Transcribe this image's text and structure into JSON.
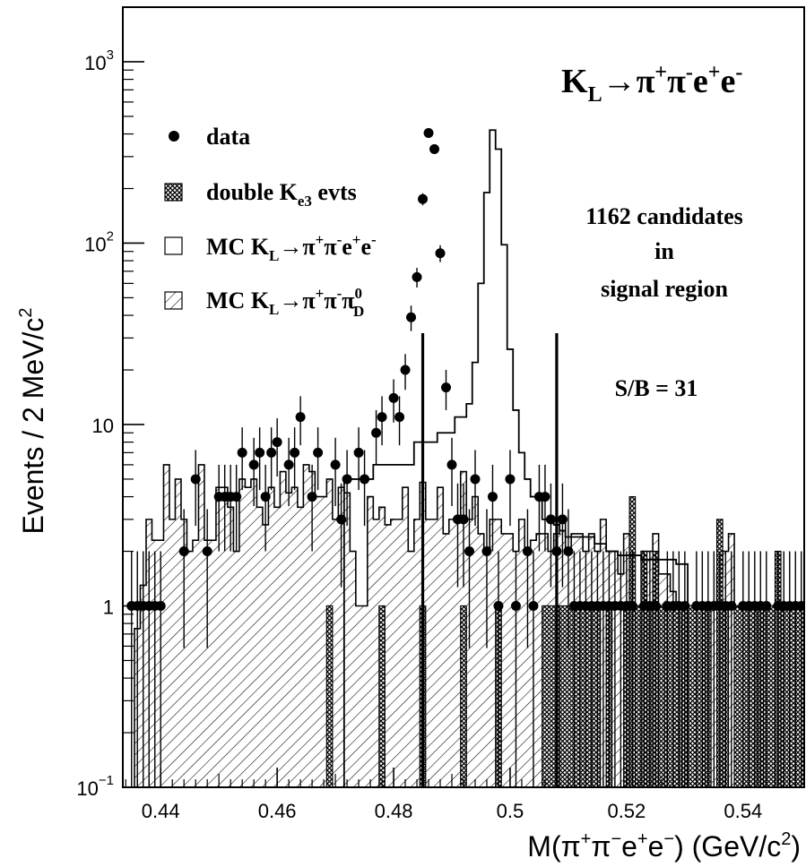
{
  "chart_data": {
    "type": "histogram",
    "title": "",
    "xlabel": "M(π+π−e+e−) (GeV/c2)",
    "ylabel": "Events / 2 MeV/c2",
    "ylog": true,
    "xlim": [
      0.4335,
      0.5505
    ],
    "ylim": [
      0.1,
      2000
    ],
    "x_ticks": [
      "0.44",
      "0.46",
      "0.48",
      "0.5",
      "0.52",
      "0.54"
    ],
    "y_ticks": [
      {
        "base": "10",
        "exp": "−1",
        "value": 0.1
      },
      {
        "base": "1",
        "exp": "",
        "value": 1
      },
      {
        "base": "10",
        "exp": "",
        "value": 10
      },
      {
        "base": "10",
        "exp": "2",
        "value": 100
      },
      {
        "base": "10",
        "exp": "3",
        "value": 1000
      }
    ],
    "bin_width": 0.001,
    "signal_window": [
      0.485,
      0.508
    ],
    "series": [
      {
        "name": "data",
        "style": "points-with-errors",
        "x": [
          0.435,
          0.436,
          0.437,
          0.438,
          0.439,
          0.44,
          0.444,
          0.446,
          0.448,
          0.45,
          0.451,
          0.452,
          0.453,
          0.454,
          0.456,
          0.457,
          0.458,
          0.459,
          0.46,
          0.462,
          0.463,
          0.464,
          0.466,
          0.467,
          0.47,
          0.471,
          0.472,
          0.474,
          0.475,
          0.477,
          0.478,
          0.48,
          0.481,
          0.482,
          0.483,
          0.484,
          0.485,
          0.486,
          0.487,
          0.488,
          0.489,
          0.49,
          0.491,
          0.492,
          0.493,
          0.494,
          0.496,
          0.497,
          0.498,
          0.5,
          0.501,
          0.503,
          0.504,
          0.505,
          0.506,
          0.507,
          0.508,
          0.509,
          0.51,
          0.511,
          0.512,
          0.513,
          0.514,
          0.515,
          0.516,
          0.517,
          0.518,
          0.519,
          0.52,
          0.521,
          0.523,
          0.524,
          0.525,
          0.527,
          0.528,
          0.529,
          0.53,
          0.532,
          0.533,
          0.534,
          0.535,
          0.536,
          0.537,
          0.538,
          0.54,
          0.541,
          0.542,
          0.543,
          0.544,
          0.546,
          0.547,
          0.548,
          0.549,
          0.55
        ],
        "values": [
          1,
          1,
          1,
          1,
          1,
          1,
          2,
          5,
          2,
          4,
          4,
          4,
          4,
          7,
          6,
          7,
          4,
          7,
          8,
          6,
          7,
          11,
          4,
          7,
          6,
          3,
          5,
          7,
          5,
          9,
          11,
          14,
          11,
          20,
          39,
          65,
          175,
          405,
          330,
          88,
          16,
          6,
          3,
          3,
          2,
          5,
          2,
          4,
          1,
          5,
          1,
          2,
          1,
          4,
          4,
          3,
          2,
          3,
          2,
          1,
          1,
          1,
          1,
          1,
          1,
          1,
          1,
          1,
          1,
          1,
          1,
          1,
          1,
          1,
          1,
          1,
          1,
          1,
          1,
          1,
          1,
          1,
          1,
          1,
          1,
          1,
          1,
          1,
          1,
          1,
          1,
          1,
          1,
          1
        ],
        "note": "Original shows filled circles with vertical error bars."
      },
      {
        "name": "double Ke3 evts",
        "style": "crosshatch-histogram",
        "edges": [
          0.4685,
          0.4695,
          0.4775,
          0.4785,
          0.4845,
          0.4855,
          0.4915,
          0.4925,
          0.4975,
          0.4985,
          0.5055,
          0.5085,
          0.5155,
          0.5165,
          0.5175,
          0.5195,
          0.5205,
          0.5215,
          0.5225,
          0.5235,
          0.5245,
          0.5255,
          0.5265,
          0.5295,
          0.5305,
          0.5335,
          0.5345,
          0.5355,
          0.5365,
          0.5375,
          0.5385,
          0.5425,
          0.5435,
          0.5455,
          0.5465,
          0.5505
        ],
        "values": [
          1,
          0,
          1,
          0,
          1,
          0,
          1,
          0,
          1,
          0,
          1,
          1,
          0,
          1,
          0,
          1,
          4,
          1,
          2,
          1,
          2,
          1,
          1,
          1,
          1,
          1,
          0,
          3,
          1,
          0,
          1,
          1,
          1,
          2,
          1
        ]
      },
      {
        "name": "MC KL→π+π−e+e−",
        "style": "open-histogram",
        "edges": [
          0.4715,
          0.4765,
          0.4835,
          0.4875,
          0.4905,
          0.4925,
          0.4935,
          0.4945,
          0.4955,
          0.4965,
          0.4975,
          0.4985,
          0.4995,
          0.5005,
          0.5015,
          0.5025,
          0.5035,
          0.5045,
          0.5055,
          0.5065,
          0.5075,
          0.5085,
          0.5095,
          0.5145,
          0.5165,
          0.5185,
          0.5225,
          0.5255,
          0.5285,
          0.5305
        ],
        "values": [
          5,
          6,
          8,
          9,
          11,
          13,
          22,
          60,
          190,
          420,
          330,
          98,
          26,
          12,
          7,
          5,
          4,
          4,
          3,
          3,
          2.8,
          2.6,
          2.4,
          2.2,
          2.0,
          1.9,
          1.8,
          1.8,
          1.7
        ]
      },
      {
        "name": "MC KL→π+π−π0D",
        "style": "diagonal-hatch-histogram",
        "edges": [
          0.4335,
          0.4345,
          0.4355,
          0.4365,
          0.4375,
          0.4385,
          0.4395,
          0.4405,
          0.4415,
          0.4425,
          0.4435,
          0.4445,
          0.4455,
          0.4465,
          0.4475,
          0.4485,
          0.4495,
          0.4505,
          0.4515,
          0.4525,
          0.4535,
          0.4545,
          0.4555,
          0.4565,
          0.4575,
          0.4585,
          0.4595,
          0.4605,
          0.4615,
          0.4625,
          0.4635,
          0.4645,
          0.4655,
          0.4665,
          0.4675,
          0.4685,
          0.4695,
          0.4705,
          0.4715,
          0.4725,
          0.4735,
          0.4745,
          0.4755,
          0.4765,
          0.4775,
          0.4785,
          0.4795,
          0.4805,
          0.4815,
          0.4825,
          0.4835,
          0.4845,
          0.4855,
          0.4865,
          0.4875,
          0.4885,
          0.4895,
          0.4905,
          0.4915,
          0.4925,
          0.4935,
          0.4945,
          0.4955,
          0.4965,
          0.4975,
          0.4985,
          0.4995,
          0.5005,
          0.5015,
          0.5025,
          0.5035,
          0.5045,
          0.5055,
          0.5065,
          0.5075,
          0.5085,
          0.5095,
          0.5105,
          0.5115,
          0.5125,
          0.5135,
          0.5145,
          0.5155,
          0.5165,
          0.5175,
          0.5185,
          0.5195,
          0.5205,
          0.5215,
          0.5225,
          0.5235,
          0.5245,
          0.5255,
          0.5265,
          0.5275,
          0.5285,
          0.5295,
          0.5305,
          0.5315,
          0.5325,
          0.5335,
          0.5345,
          0.5355,
          0.5365,
          0.5375,
          0.5385,
          0.5395,
          0.5405,
          0.5415,
          0.5425,
          0.5435,
          0.5445,
          0.5455,
          0.5465,
          0.5475,
          0.5485,
          0.5495,
          0.5505
        ],
        "values": [
          0.1,
          0.1,
          0.75,
          1.3,
          3.0,
          2.3,
          2.3,
          6.0,
          3.0,
          5.0,
          3.0,
          2.0,
          2.3,
          6.0,
          2.3,
          2.3,
          4.5,
          4.5,
          3.5,
          2.0,
          5.0,
          4.5,
          5.0,
          3.5,
          2.8,
          4.5,
          3.5,
          5.5,
          4.2,
          4.5,
          3.5,
          6.0,
          5.5,
          4.0,
          4.0,
          5.0,
          3.0,
          4.5,
          4.2,
          2.0,
          1.0,
          1.0,
          4.0,
          3.0,
          3.5,
          2.8,
          3.0,
          3.0,
          4.5,
          2.0,
          3.0,
          4.8,
          3.0,
          3.0,
          4.5,
          2.5,
          3.0,
          3.0,
          5.5,
          3.0,
          4.0,
          2.5,
          2.0,
          3.0,
          3.0,
          2.5,
          2.5,
          2.0,
          3.0,
          2.0,
          2.3,
          2.5,
          2.5,
          2.0,
          2.5,
          3.0,
          2.0,
          2.5,
          2.5,
          2.0,
          2.5,
          2.0,
          3.0,
          2.0,
          2.0,
          1.5,
          2.5,
          1.0,
          1.0,
          2.0,
          2.0,
          2.5,
          1.5,
          1.5,
          1.2,
          1.0,
          1.0,
          1.0,
          1.0,
          1.0,
          1.0,
          1.0,
          1.5,
          2.0,
          2.5,
          1.0,
          1.0,
          1.0,
          1.0,
          1.0,
          1.0,
          1.0,
          1.0,
          1.0,
          1.0,
          1.0,
          1.0
        ]
      }
    ],
    "legend": {
      "placement": "upper-left",
      "items": [
        {
          "marker": "dot",
          "label": "data"
        },
        {
          "marker": "crosshatch",
          "label_main": "double K",
          "label_sub": "e3",
          "label_tail": " evts"
        },
        {
          "marker": "open",
          "label": "MC KL→π+π−e+e−"
        },
        {
          "marker": "diagonal",
          "label": "MC KL→π+π−π0D"
        }
      ]
    },
    "annotations": {
      "process": "KL→π+π−e+e−",
      "candidates_line1": "1162 candidates",
      "candidates_line2": "in",
      "candidates_line3": "signal region",
      "sb_ratio": "S/B = 31"
    }
  }
}
